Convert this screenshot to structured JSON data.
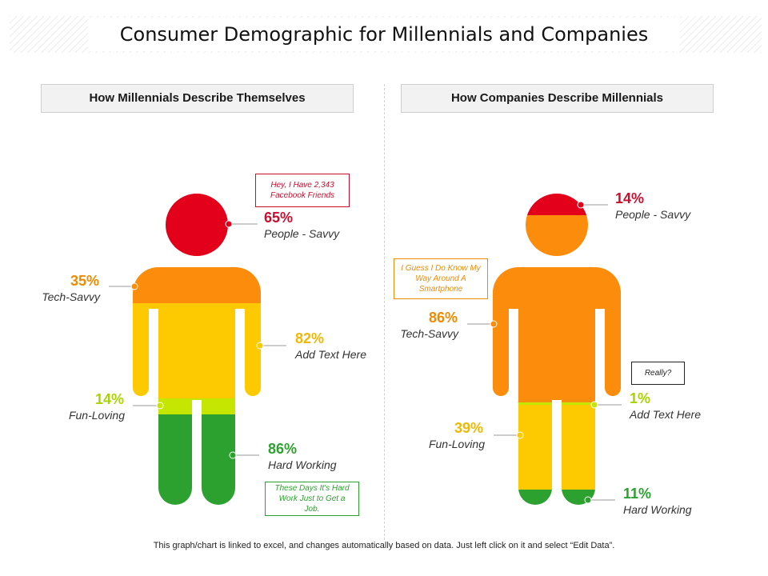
{
  "title": "Consumer Demographic for Millennials and Companies",
  "panels": {
    "left": {
      "header": "How Millennials Describe Themselves",
      "callouts": {
        "top": "Hey, I Have 2,343 Facebook Friends",
        "bottom": "These Days It's Hard Work Just to Get a Job."
      },
      "segments": [
        {
          "value": 65,
          "pct_text": "65%",
          "label": "People - Savvy",
          "color": "#e3001b"
        },
        {
          "value": 35,
          "pct_text": "35%",
          "label": "Tech-Savvy",
          "color": "#fb8c0c"
        },
        {
          "value": 82,
          "pct_text": "82%",
          "label": "Add Text Here",
          "color": "#fdc900"
        },
        {
          "value": 14,
          "pct_text": "14%",
          "label": "Fun-Loving",
          "color": "#c4e600"
        },
        {
          "value": 86,
          "pct_text": "86%",
          "label": "Hard Working",
          "color": "#2da12f"
        }
      ]
    },
    "right": {
      "header": "How Companies Describe Millennials",
      "callouts": {
        "top": "I Guess I Do Know My Way Around A Smartphone",
        "side": "Really?"
      },
      "segments": [
        {
          "value": 14,
          "pct_text": "14%",
          "label": "People - Savvy",
          "color": "#e3001b"
        },
        {
          "value": 86,
          "pct_text": "86%",
          "label": "Tech-Savvy",
          "color": "#fb8c0c"
        },
        {
          "value": 1,
          "pct_text": "1%",
          "label": "Add Text Here",
          "color": "#c4e600"
        },
        {
          "value": 39,
          "pct_text": "39%",
          "label": "Fun-Loving",
          "color": "#fdc900"
        },
        {
          "value": 11,
          "pct_text": "11%",
          "label": "Hard Working",
          "color": "#2da12f"
        }
      ]
    }
  },
  "footer": "This graph/chart is linked to excel, and changes automatically based on data. Just left click on it and select “Edit Data”."
}
